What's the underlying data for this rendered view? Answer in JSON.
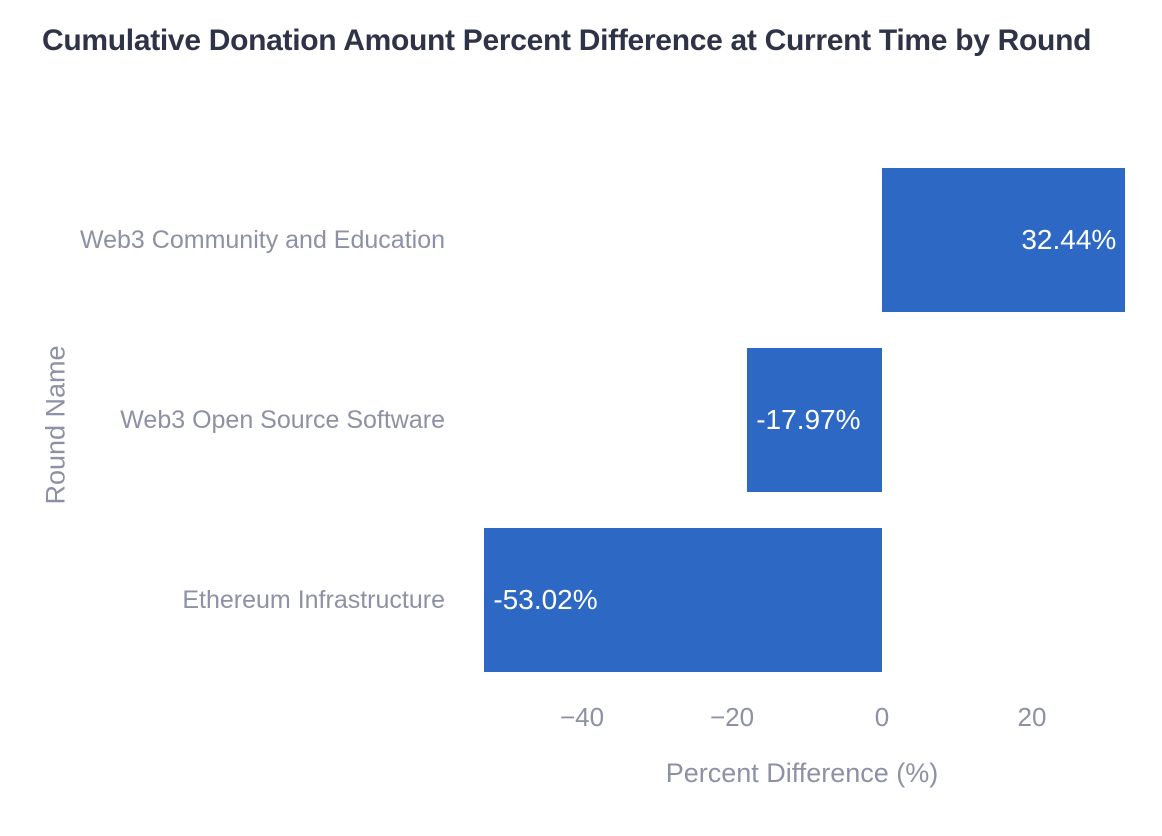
{
  "chart_data": {
    "type": "bar",
    "orientation": "horizontal",
    "title": "Cumulative Donation Amount Percent Difference at Current Time by Round",
    "xlabel": "Percent Difference (%)",
    "ylabel": "Round Name",
    "categories": [
      "Web3 Community and Education",
      "Web3 Open Source Software",
      "Ethereum Infrastructure"
    ],
    "values": [
      32.44,
      -17.97,
      -53.02
    ],
    "value_labels": [
      "32.44%",
      "-17.97%",
      "-53.02%"
    ],
    "xlim": [
      -57.6,
      36.4
    ],
    "xticks": [
      -40,
      -20,
      0,
      20
    ],
    "xtick_labels": [
      "−40",
      "−20",
      "0",
      "20"
    ],
    "grid": false,
    "legend": false,
    "bar_gap_fraction": 0.2,
    "colors": {
      "bar": "#2d68c4",
      "value_label": "#ffffff",
      "title": "#2f3347",
      "axis_text": "#8e91a6",
      "background": "#ffffff"
    }
  }
}
